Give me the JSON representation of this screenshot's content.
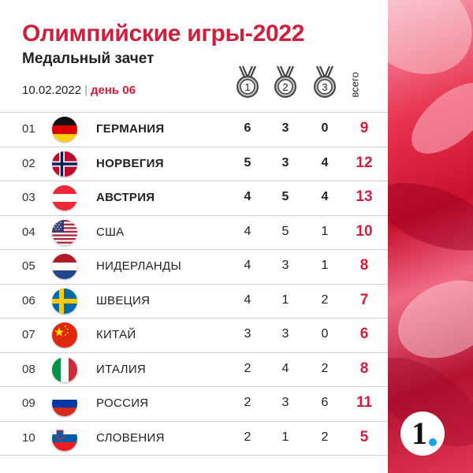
{
  "header": {
    "title": "Олимпийские игры-2022",
    "subtitle": "Медальный зачет",
    "date": "10.02.2022",
    "separator": "|",
    "day": "день 06",
    "total_label": "всего"
  },
  "medals": [
    {
      "label": "1",
      "icon": "gold-medal-icon"
    },
    {
      "label": "2",
      "icon": "silver-medal-icon"
    },
    {
      "label": "3",
      "icon": "bronze-medal-icon"
    }
  ],
  "rows": [
    {
      "rank": "01",
      "country": "ГЕРМАНИЯ",
      "gold": "6",
      "silver": "3",
      "bronze": "0",
      "total": "9",
      "flag": "germany",
      "bold": true
    },
    {
      "rank": "02",
      "country": "НОРВЕГИЯ",
      "gold": "5",
      "silver": "3",
      "bronze": "4",
      "total": "12",
      "flag": "norway",
      "bold": true
    },
    {
      "rank": "03",
      "country": "АВСТРИЯ",
      "gold": "4",
      "silver": "5",
      "bronze": "4",
      "total": "13",
      "flag": "austria",
      "bold": true
    },
    {
      "rank": "04",
      "country": "США",
      "gold": "4",
      "silver": "5",
      "bronze": "1",
      "total": "10",
      "flag": "usa",
      "bold": false
    },
    {
      "rank": "05",
      "country": "НИДЕРЛАНДЫ",
      "gold": "4",
      "silver": "3",
      "bronze": "1",
      "total": "8",
      "flag": "netherlands",
      "bold": false
    },
    {
      "rank": "06",
      "country": "ШВЕЦИЯ",
      "gold": "4",
      "silver": "1",
      "bronze": "2",
      "total": "7",
      "flag": "sweden",
      "bold": false
    },
    {
      "rank": "07",
      "country": "КИТАЙ",
      "gold": "3",
      "silver": "3",
      "bronze": "0",
      "total": "6",
      "flag": "china",
      "bold": false
    },
    {
      "rank": "08",
      "country": "ИТАЛИЯ",
      "gold": "2",
      "silver": "4",
      "bronze": "2",
      "total": "8",
      "flag": "italy",
      "bold": false
    },
    {
      "rank": "09",
      "country": "РОССИЯ",
      "gold": "2",
      "silver": "3",
      "bronze": "6",
      "total": "11",
      "flag": "russia",
      "bold": false
    },
    {
      "rank": "10",
      "country": "СЛОВЕНИЯ",
      "gold": "2",
      "silver": "1",
      "bronze": "2",
      "total": "5",
      "flag": "slovenia",
      "bold": false
    }
  ],
  "logo": {
    "text": "1",
    "icon": "channel-one-logo"
  },
  "colors": {
    "accent": "#d01f3c",
    "logo_dot": "#1aa3e8"
  }
}
